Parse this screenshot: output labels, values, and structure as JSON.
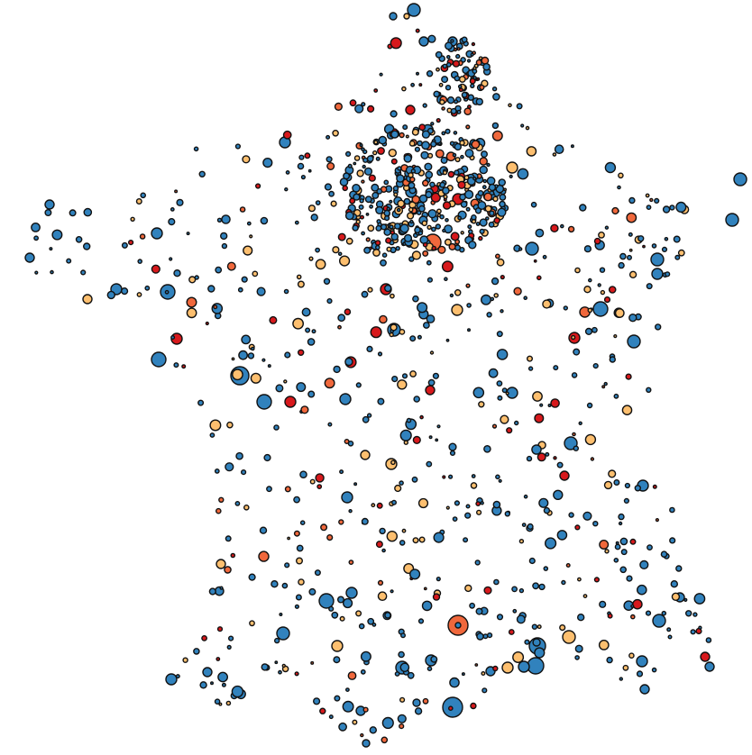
{
  "map": {
    "type": "proportional-symbol-map",
    "region": "France",
    "palette": {
      "blue": "#3182bd",
      "light_orange": "#fdbf6f",
      "orange": "#f0683c",
      "red": "#d7191c",
      "outline": "#111111"
    },
    "symbol_categories": [
      "blue",
      "light_orange",
      "orange",
      "red"
    ],
    "legend": null,
    "title": null
  }
}
